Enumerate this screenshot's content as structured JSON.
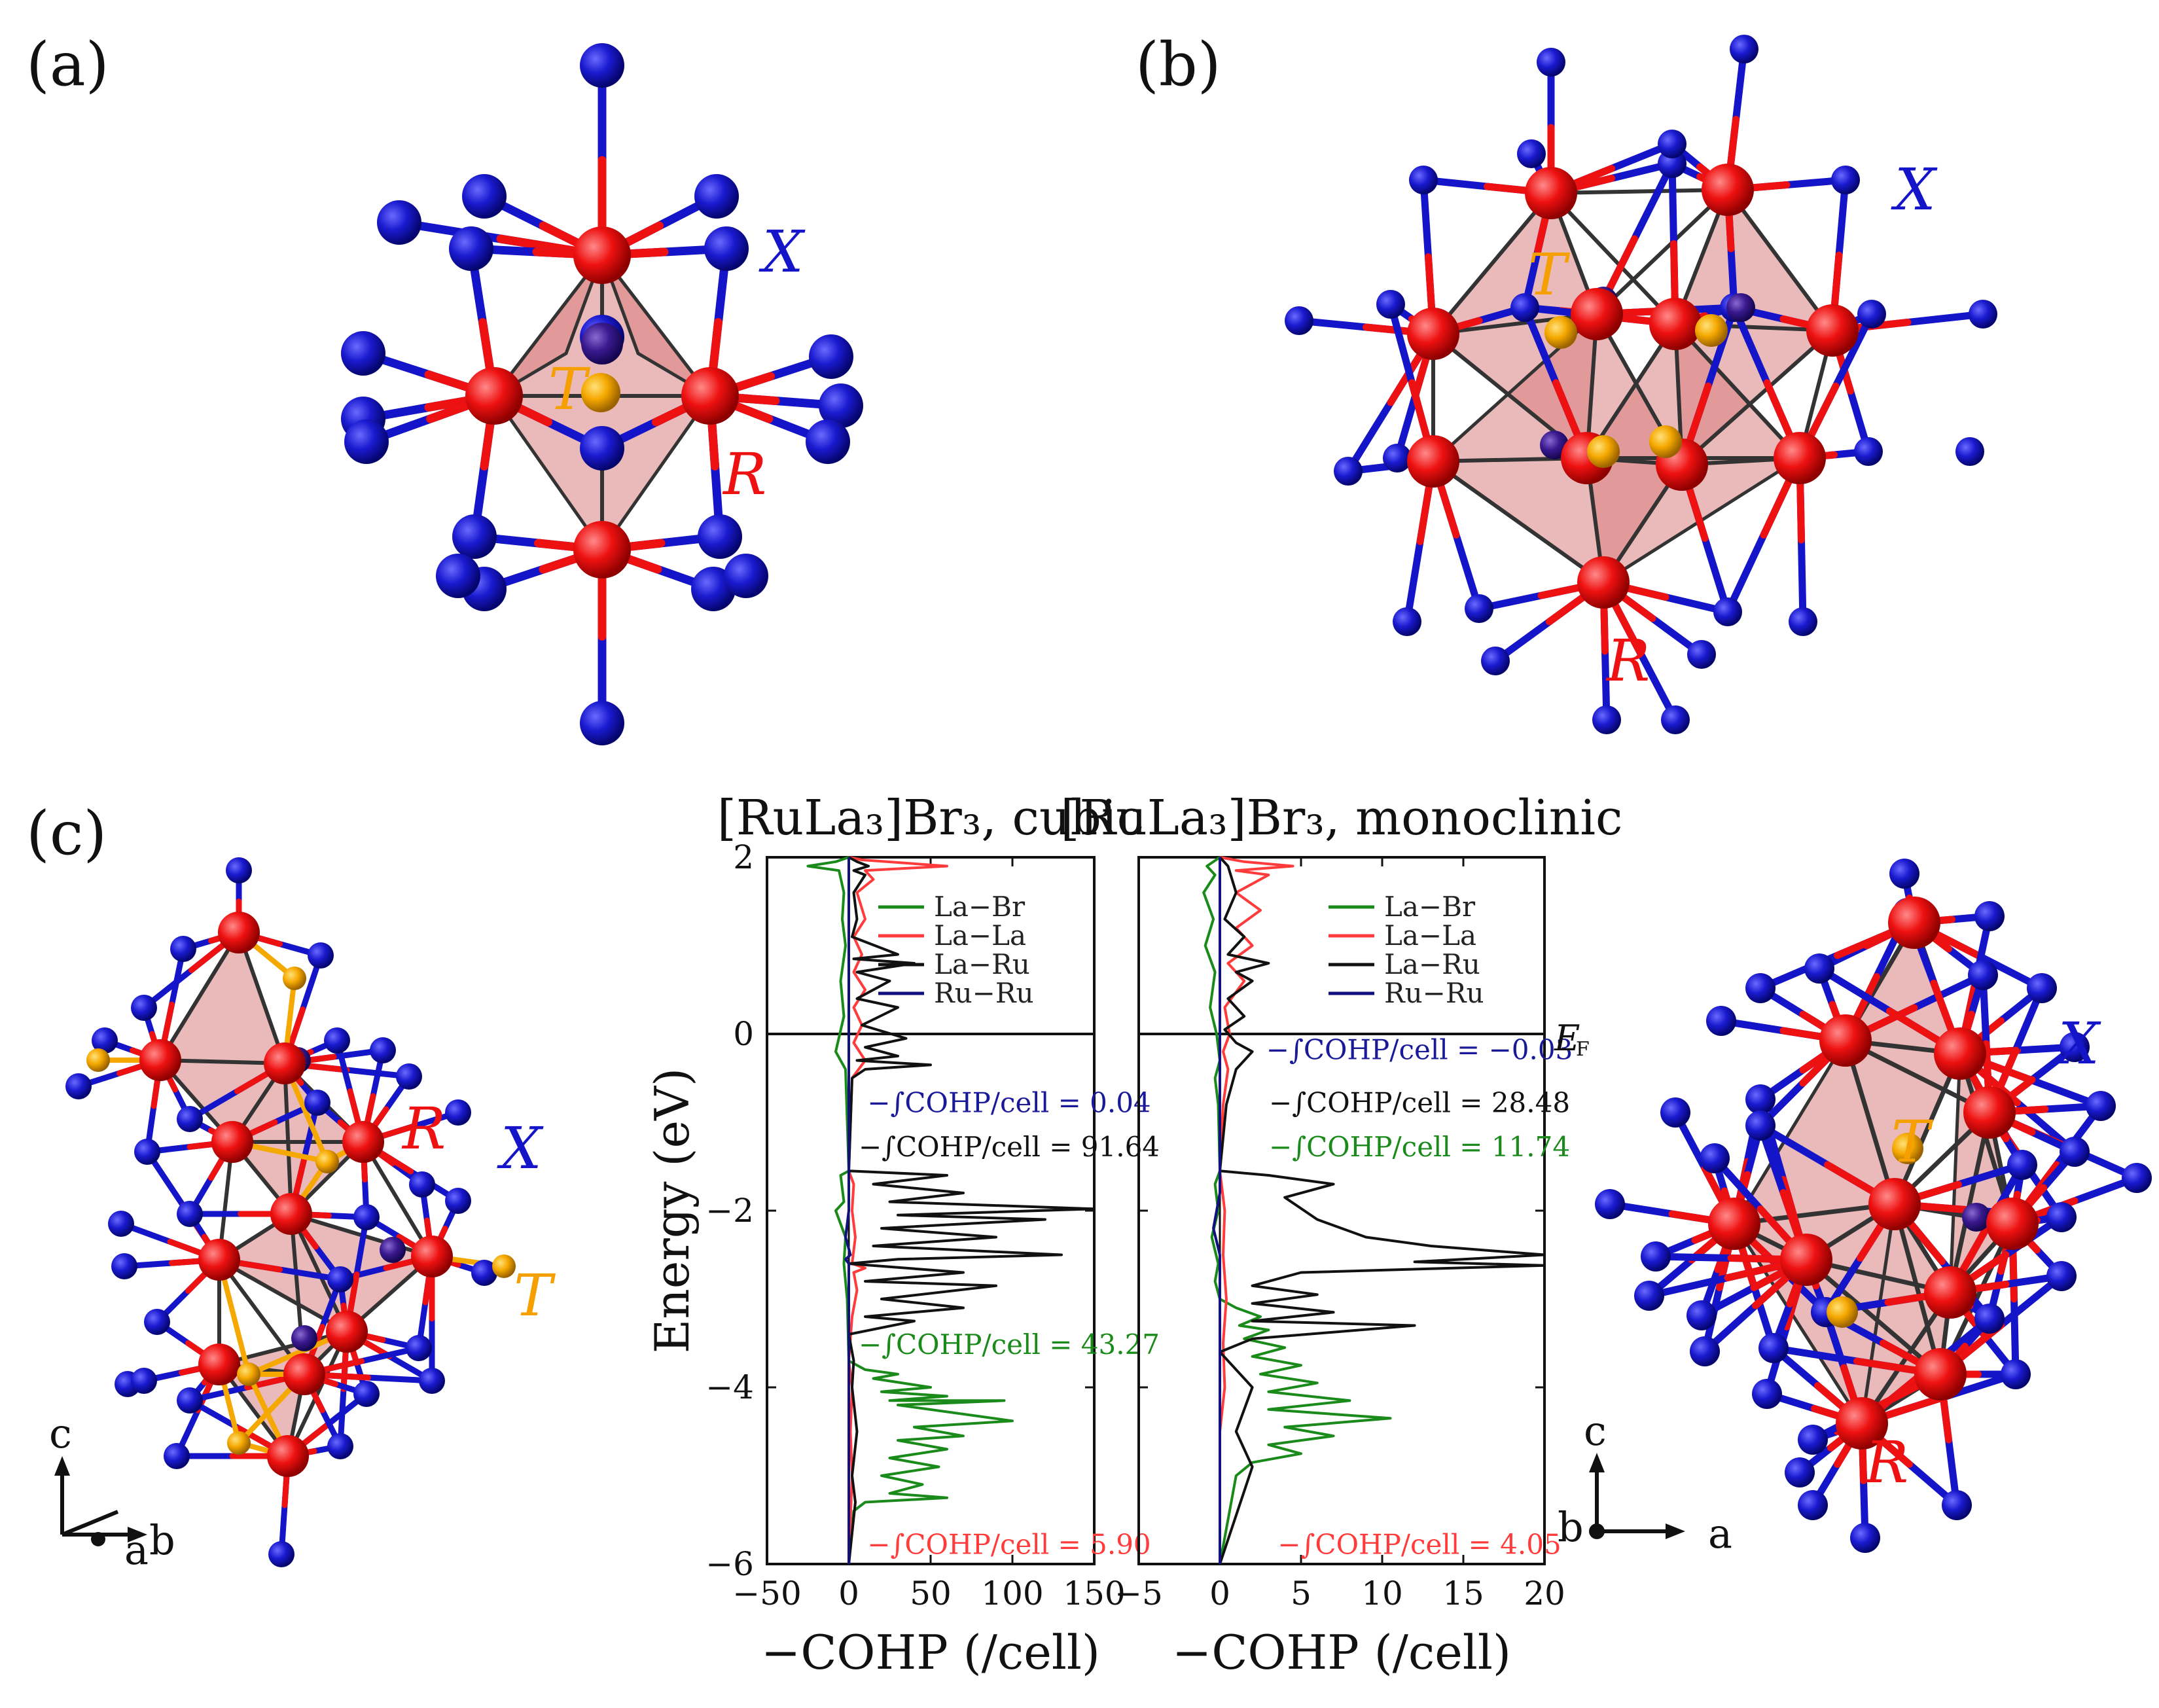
{
  "panels": {
    "a": "(a)",
    "b": "(b)",
    "c": "(c)"
  },
  "element_labels": {
    "X": "X",
    "R": "R",
    "T": "T",
    "EF": "E",
    "EF_sub": "F"
  },
  "axis_glyphs": {
    "c": "c",
    "a": "a",
    "b": "b"
  },
  "colors": {
    "X_atom": "#1414c8",
    "R_atom": "#ee1111",
    "T_atom": "#f5a800",
    "bond": "#333333",
    "polyhedron": "#d98080",
    "label_orange": "#f5a000"
  },
  "chart_data": [
    {
      "type": "line",
      "title": "[RuLa3]Br3, cubic",
      "xlabel": "−COHP (/cell)",
      "ylabel": "Energy (eV)",
      "xlim": [
        -50,
        150
      ],
      "ylim": [
        -6,
        2
      ],
      "xticks": [
        "−50",
        "0",
        "50",
        "100",
        "150"
      ],
      "yticks": [
        "−6",
        "−4",
        "−2",
        "0",
        "2"
      ],
      "fermi_level": 0,
      "legend": "top-right",
      "series": [
        {
          "name": "La−Br",
          "color": "#1a8a1a",
          "points": [
            [
              0,
              2
            ],
            [
              -8,
              1.95
            ],
            [
              -25,
              1.9
            ],
            [
              -6,
              1.85
            ],
            [
              -3,
              1.6
            ],
            [
              -4,
              1.3
            ],
            [
              -2,
              1
            ],
            [
              -5,
              0.6
            ],
            [
              -3,
              0.2
            ],
            [
              -8,
              -0.2
            ],
            [
              -2,
              -0.4
            ],
            [
              0,
              -1.55
            ],
            [
              -5,
              -1.6
            ],
            [
              -3,
              -1.9
            ],
            [
              -8,
              -2.0
            ],
            [
              -2,
              -2.3
            ],
            [
              -3,
              -2.6
            ],
            [
              -1,
              -3.0
            ],
            [
              0,
              -3.7
            ],
            [
              10,
              -3.8
            ],
            [
              30,
              -3.85
            ],
            [
              15,
              -3.9
            ],
            [
              50,
              -4.0
            ],
            [
              20,
              -4.05
            ],
            [
              60,
              -4.1
            ],
            [
              25,
              -4.15
            ],
            [
              95,
              -4.15
            ],
            [
              30,
              -4.2
            ],
            [
              100,
              -4.38
            ],
            [
              40,
              -4.45
            ],
            [
              70,
              -4.55
            ],
            [
              30,
              -4.6
            ],
            [
              60,
              -4.7
            ],
            [
              25,
              -4.8
            ],
            [
              55,
              -4.9
            ],
            [
              20,
              -5.0
            ],
            [
              45,
              -5.1
            ],
            [
              25,
              -5.2
            ],
            [
              60,
              -5.25
            ],
            [
              10,
              -5.3
            ],
            [
              3,
              -5.4
            ],
            [
              0,
              -6
            ]
          ]
        },
        {
          "name": "La−La",
          "color": "#ff3b3b",
          "points": [
            [
              0,
              2
            ],
            [
              8,
              1.97
            ],
            [
              60,
              1.9
            ],
            [
              10,
              1.85
            ],
            [
              15,
              1.75
            ],
            [
              5,
              1.6
            ],
            [
              10,
              1.3
            ],
            [
              3,
              1.1
            ],
            [
              8,
              0.9
            ],
            [
              3,
              0.7
            ],
            [
              10,
              0.5
            ],
            [
              3,
              0.3
            ],
            [
              8,
              0.1
            ],
            [
              3,
              -0.1
            ],
            [
              10,
              -0.3
            ],
            [
              2,
              -0.5
            ],
            [
              0,
              -1.55
            ],
            [
              3,
              -1.7
            ],
            [
              2,
              -2.0
            ],
            [
              4,
              -2.3
            ],
            [
              2,
              -2.6
            ],
            [
              10,
              -2.65
            ],
            [
              3,
              -2.7
            ],
            [
              5,
              -2.9
            ],
            [
              2,
              -3.2
            ],
            [
              0,
              -3.7
            ],
            [
              2,
              -4.0
            ],
            [
              1,
              -4.5
            ],
            [
              2,
              -5.0
            ],
            [
              1,
              -5.5
            ],
            [
              0,
              -6
            ]
          ]
        },
        {
          "name": "La−Ru",
          "color": "#111111",
          "points": [
            [
              0,
              2
            ],
            [
              5,
              1.95
            ],
            [
              12,
              1.9
            ],
            [
              3,
              1.85
            ],
            [
              10,
              1.8
            ],
            [
              3,
              1.6
            ],
            [
              5,
              1.3
            ],
            [
              2,
              1.1
            ],
            [
              30,
              0.9
            ],
            [
              3,
              0.85
            ],
            [
              40,
              0.8
            ],
            [
              5,
              0.7
            ],
            [
              25,
              0.6
            ],
            [
              5,
              0.4
            ],
            [
              30,
              0.3
            ],
            [
              8,
              0.1
            ],
            [
              35,
              -0.05
            ],
            [
              10,
              -0.15
            ],
            [
              30,
              -0.25
            ],
            [
              5,
              -0.3
            ],
            [
              50,
              -0.35
            ],
            [
              10,
              -0.4
            ],
            [
              2,
              -0.5
            ],
            [
              0,
              -1.55
            ],
            [
              60,
              -1.6
            ],
            [
              15,
              -1.7
            ],
            [
              70,
              -1.8
            ],
            [
              25,
              -1.9
            ],
            [
              150,
              -1.98
            ],
            [
              30,
              -2.05
            ],
            [
              120,
              -2.1
            ],
            [
              20,
              -2.2
            ],
            [
              90,
              -2.3
            ],
            [
              15,
              -2.4
            ],
            [
              130,
              -2.5
            ],
            [
              30,
              -2.55
            ],
            [
              0,
              -2.6
            ],
            [
              70,
              -2.7
            ],
            [
              10,
              -2.8
            ],
            [
              90,
              -2.85
            ],
            [
              20,
              -3.0
            ],
            [
              70,
              -3.1
            ],
            [
              10,
              -3.2
            ],
            [
              40,
              -3.25
            ],
            [
              0,
              -3.4
            ],
            [
              3,
              -3.7
            ],
            [
              2,
              -4.0
            ],
            [
              5,
              -4.5
            ],
            [
              2,
              -5.0
            ],
            [
              4,
              -5.3
            ],
            [
              0,
              -6
            ]
          ]
        },
        {
          "name": "Ru−Ru",
          "color": "#101080",
          "points": [
            [
              0,
              2
            ],
            [
              0,
              1
            ],
            [
              0,
              0
            ],
            [
              0,
              -2.0
            ],
            [
              -2,
              -2.3
            ],
            [
              1,
              -2.5
            ],
            [
              -2,
              -2.55
            ],
            [
              0,
              -2.6
            ],
            [
              0,
              -6
            ]
          ]
        }
      ],
      "annotations": [
        {
          "text": "−∫COHP/cell = 0.04",
          "color": "#1a1a99",
          "x": 98,
          "y": -0.78
        },
        {
          "text": "−∫COHP/cell = 91.64",
          "color": "#111111",
          "x": 98,
          "y": -1.28
        },
        {
          "text": "−∫COHP/cell = 43.27",
          "color": "#1a8a1a",
          "x": 98,
          "y": -3.52
        },
        {
          "text": "−∫COHP/cell = 5.90",
          "color": "#ff3b3b",
          "x": 98,
          "y": -5.78
        }
      ]
    },
    {
      "type": "line",
      "title": "[RuLa3]Br3, monoclinic",
      "xlabel": "−COHP (/cell)",
      "ylabel": "",
      "xlim": [
        -5,
        20
      ],
      "ylim": [
        -6,
        2
      ],
      "xticks": [
        "−5",
        "0",
        "5",
        "10",
        "15",
        "20"
      ],
      "yticks": [],
      "fermi_level": 0,
      "legend": "top-right",
      "series": [
        {
          "name": "La−Br",
          "color": "#1a8a1a",
          "points": [
            [
              0,
              2
            ],
            [
              -0.8,
              1.9
            ],
            [
              -0.3,
              1.8
            ],
            [
              -1.0,
              1.6
            ],
            [
              -0.4,
              1.3
            ],
            [
              -0.9,
              1.0
            ],
            [
              -0.3,
              0.7
            ],
            [
              -0.6,
              0.3
            ],
            [
              -0.2,
              0.0
            ],
            [
              0,
              -0.3
            ],
            [
              -0.3,
              -0.5
            ],
            [
              -0.1,
              -0.8
            ],
            [
              0,
              -1.55
            ],
            [
              -0.3,
              -1.7
            ],
            [
              -0.1,
              -2.0
            ],
            [
              -0.5,
              -2.3
            ],
            [
              -0.1,
              -2.6
            ],
            [
              -0.3,
              -2.8
            ],
            [
              0,
              -3.0
            ],
            [
              1,
              -3.1
            ],
            [
              2.5,
              -3.2
            ],
            [
              1.2,
              -3.3
            ],
            [
              3,
              -3.35
            ],
            [
              1.5,
              -3.45
            ],
            [
              4,
              -3.55
            ],
            [
              2,
              -3.65
            ],
            [
              5,
              -3.75
            ],
            [
              2.5,
              -3.85
            ],
            [
              6,
              -3.95
            ],
            [
              3,
              -4.05
            ],
            [
              8,
              -4.15
            ],
            [
              3,
              -4.25
            ],
            [
              10.5,
              -4.35
            ],
            [
              4,
              -4.45
            ],
            [
              7,
              -4.55
            ],
            [
              3,
              -4.65
            ],
            [
              5,
              -4.75
            ],
            [
              2,
              -4.85
            ],
            [
              1,
              -5.0
            ],
            [
              0,
              -6
            ]
          ]
        },
        {
          "name": "La−La",
          "color": "#ff3b3b",
          "points": [
            [
              0,
              2
            ],
            [
              1.5,
              1.95
            ],
            [
              4.5,
              1.9
            ],
            [
              1,
              1.85
            ],
            [
              3,
              1.8
            ],
            [
              1,
              1.6
            ],
            [
              2.5,
              1.4
            ],
            [
              1,
              1.2
            ],
            [
              2,
              1.0
            ],
            [
              0.5,
              0.8
            ],
            [
              1.5,
              0.6
            ],
            [
              0.3,
              0.3
            ],
            [
              0.6,
              0.0
            ],
            [
              0.2,
              -0.2
            ],
            [
              0.5,
              -0.4
            ],
            [
              0.2,
              -0.8
            ],
            [
              0,
              -1.55
            ],
            [
              0.3,
              -2.0
            ],
            [
              0.2,
              -2.5
            ],
            [
              0.4,
              -3.0
            ],
            [
              0.2,
              -3.5
            ],
            [
              0.3,
              -4.0
            ],
            [
              0,
              -4.5
            ],
            [
              0,
              -6
            ]
          ]
        },
        {
          "name": "La−Ru",
          "color": "#111111",
          "points": [
            [
              0,
              2
            ],
            [
              0.5,
              1.9
            ],
            [
              1,
              1.6
            ],
            [
              0.3,
              1.3
            ],
            [
              1.5,
              1.1
            ],
            [
              0.5,
              0.9
            ],
            [
              3,
              0.8
            ],
            [
              1,
              0.7
            ],
            [
              2,
              0.6
            ],
            [
              0.5,
              0.4
            ],
            [
              1.5,
              0.2
            ],
            [
              0.3,
              0.05
            ],
            [
              1,
              -0.1
            ],
            [
              2,
              -0.2
            ],
            [
              1,
              -0.4
            ],
            [
              0.4,
              -0.8
            ],
            [
              0,
              -1.55
            ],
            [
              3,
              -1.6
            ],
            [
              7,
              -1.7
            ],
            [
              4,
              -1.85
            ],
            [
              6,
              -2.1
            ],
            [
              9,
              -2.3
            ],
            [
              13,
              -2.4
            ],
            [
              20,
              -2.5
            ],
            [
              12,
              -2.58
            ],
            [
              20,
              -2.62
            ],
            [
              5,
              -2.7
            ],
            [
              2,
              -2.85
            ],
            [
              6,
              -2.95
            ],
            [
              2,
              -3.05
            ],
            [
              7,
              -3.15
            ],
            [
              2,
              -3.25
            ],
            [
              12,
              -3.3
            ],
            [
              2,
              -3.45
            ],
            [
              0,
              -3.6
            ],
            [
              2,
              -4.0
            ],
            [
              1,
              -4.5
            ],
            [
              2,
              -4.9
            ],
            [
              0,
              -6
            ]
          ]
        },
        {
          "name": "Ru−Ru",
          "color": "#101080",
          "points": [
            [
              0,
              2
            ],
            [
              0,
              -1.8
            ],
            [
              -0.4,
              -2.2
            ],
            [
              0,
              -2.5
            ],
            [
              0,
              -6
            ]
          ]
        }
      ],
      "annotations": [
        {
          "text": "−∫COHP/cell = −0.03",
          "color": "#1a1a99",
          "x": 12.3,
          "y": -0.18
        },
        {
          "text": "−∫COHP/cell = 28.48",
          "color": "#111111",
          "x": 12.3,
          "y": -0.78
        },
        {
          "text": "−∫COHP/cell = 11.74",
          "color": "#1a8a1a",
          "x": 12.3,
          "y": -1.28
        },
        {
          "text": "−∫COHP/cell = 4.05",
          "color": "#ff3b3b",
          "x": 12.3,
          "y": -5.78
        }
      ]
    }
  ]
}
